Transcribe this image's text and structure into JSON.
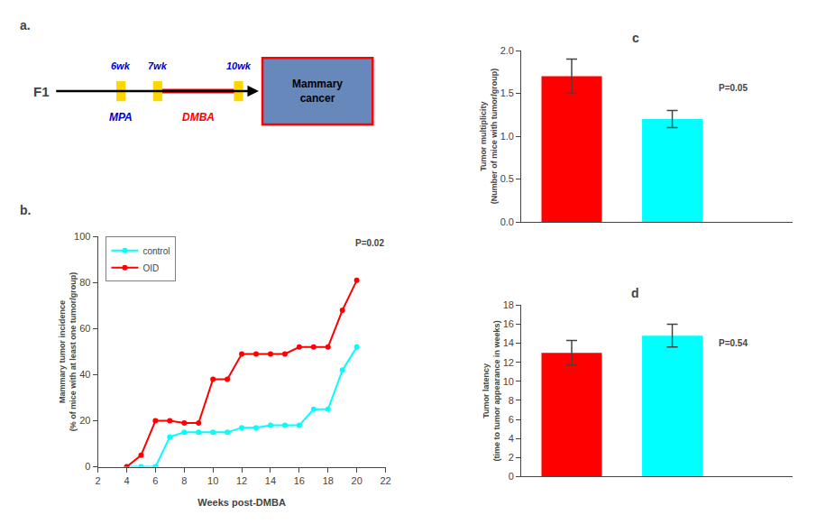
{
  "chart_data": [
    {
      "type": "diagram",
      "title": "a.",
      "annotations": [
        "F1",
        "6wk",
        "7wk",
        "10wk",
        "MPA",
        "DMBA",
        "Mammary\ncancer"
      ],
      "colors": [
        "#FFD700",
        "#FF0000",
        "#0000CC",
        "#6688BB"
      ]
    },
    {
      "type": "line",
      "title": "b.",
      "xlabel": "Weeks post-DMBA",
      "ylabel": "Mammary tumor incidence\n(% of mice with at least one tumor/group)",
      "x": [
        4,
        5,
        6,
        7,
        8,
        9,
        10,
        11,
        12,
        13,
        14,
        15,
        16,
        17,
        18,
        19,
        20
      ],
      "series": [
        {
          "name": "control",
          "color": "#00FFFF",
          "values": [
            0,
            0,
            0,
            13,
            15,
            15,
            15,
            15,
            17,
            17,
            18,
            18,
            18,
            25,
            25,
            42,
            52
          ]
        },
        {
          "name": "OID",
          "color": "#FF0000",
          "values": [
            0,
            5,
            20,
            20,
            19,
            19,
            38,
            38,
            49,
            49,
            49,
            49,
            52,
            52,
            52,
            68,
            81
          ]
        }
      ],
      "xlim": [
        2,
        22
      ],
      "xticks": [
        2,
        4,
        6,
        8,
        10,
        12,
        14,
        16,
        18,
        20,
        22
      ],
      "ylim": [
        0,
        100
      ],
      "yticks": [
        0,
        20,
        40,
        60,
        80,
        100
      ],
      "legend": "upper left",
      "grid": false,
      "marker": "circle",
      "annotations": [
        "P=0.02"
      ]
    },
    {
      "type": "bar",
      "title": "c",
      "ylabel": "Tumor multiplicity\n(Number of mice with tumor/group)",
      "categories": [
        null,
        null
      ],
      "values": [
        1.7,
        1.2
      ],
      "errors": [
        0.2,
        0.1
      ],
      "colors": [
        "#FF0000",
        "#00FFFF"
      ],
      "ylim": [
        0,
        2.0
      ],
      "yticks": [
        {
          "value": 0,
          "label": "0.0"
        },
        0.5,
        {
          "value": 1,
          "label": "1.0"
        },
        1.5,
        {
          "value": 2,
          "label": "2.0"
        }
      ],
      "tick_labels": "y",
      "grid": false,
      "annotations": [
        "P=0.05"
      ]
    },
    {
      "type": "bar",
      "title": "d",
      "ylabel": "Tumor latency\n(time to tumor appearance in weeks)",
      "categories": [
        null,
        null
      ],
      "values": [
        13.0,
        14.8
      ],
      "errors": [
        1.3,
        1.2
      ],
      "colors": [
        "#FF0000",
        "#00FFFF"
      ],
      "ylim": [
        0,
        18
      ],
      "yticks": [
        0,
        2,
        4,
        6,
        8,
        10,
        12,
        14,
        16,
        18
      ],
      "tick_labels": "y",
      "grid": false,
      "annotations": [
        "P=0.54"
      ]
    }
  ]
}
